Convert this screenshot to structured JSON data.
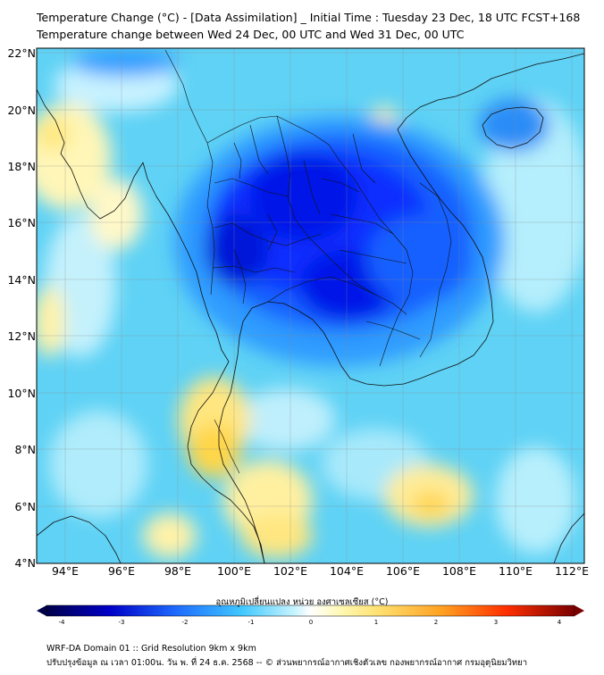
{
  "title": {
    "line1": "Temperature Change (°C) - [Data Assimilation] _ Initial Time : Tuesday 23 Dec, 18 UTC FCST+168",
    "line2": "Temperature change between Wed 24 Dec, 00 UTC and Wed 31 Dec, 00 UTC"
  },
  "map": {
    "lat_labels": [
      "22°N",
      "20°N",
      "18°N",
      "16°N",
      "14°N",
      "12°N",
      "10°N",
      "8°N",
      "6°N",
      "4°N"
    ],
    "lon_labels": [
      "94°E",
      "96°E",
      "98°E",
      "100°E",
      "102°E",
      "104°E",
      "106°E",
      "108°E",
      "110°E",
      "112°E"
    ]
  },
  "colorbar": {
    "label": "อุณหภูมิเปลี่ยนแปลง หน่วย องศาเซลเซียส (°C)",
    "ticks": [
      "-4",
      "-3",
      "-2",
      "-1",
      "0",
      "1",
      "2",
      "3",
      "4"
    ],
    "min": -4,
    "max": 4,
    "colors": {
      "min": "#00004a",
      "cold_strong": "#0000d8",
      "cold": "#1f6fff",
      "cool": "#40c8ff",
      "neutral": "#ffffff",
      "warm": "#ffe070",
      "hot": "#ff8000",
      "max": "#7a0000"
    }
  },
  "footer": {
    "line1": "WRF-DA Domain 01 :: Grid Resolution 9km x 9km",
    "line2": "ปรับปรุงข้อมูล ณ เวลา 01:00น. วัน พ. ที่ 24 ธ.ค. 2568 -- © ส่วนพยากรณ์อากาศเชิงตัวเลข กองพยากรณ์อากาศ กรมอุตุนิยมวิทยา"
  }
}
